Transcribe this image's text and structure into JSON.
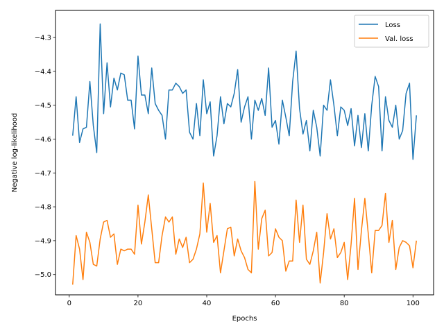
{
  "chart_data": {
    "type": "line",
    "title": "",
    "xlabel": "Epochs",
    "ylabel": "Negative log-likelihood",
    "xlim": [
      -4,
      106
    ],
    "ylim": [
      -5.06,
      -4.22
    ],
    "xticks": [
      0,
      20,
      40,
      60,
      80,
      100
    ],
    "yticks": [
      -5.0,
      -4.9,
      -4.8,
      -4.7,
      -4.6,
      -4.5,
      -4.4,
      -4.3
    ],
    "ytick_labels": [
      "−5.0",
      "−4.9",
      "−4.8",
      "−4.7",
      "−4.6",
      "−4.5",
      "−4.4",
      "−4.3"
    ],
    "grid": false,
    "legend_position": "top-right",
    "x_start": 1,
    "series": [
      {
        "name": "Loss",
        "color": "#1f77b4",
        "values": [
          -4.59,
          -4.475,
          -4.61,
          -4.57,
          -4.565,
          -4.43,
          -4.56,
          -4.64,
          -4.26,
          -4.525,
          -4.375,
          -4.505,
          -4.42,
          -4.455,
          -4.405,
          -4.41,
          -4.485,
          -4.485,
          -4.57,
          -4.355,
          -4.47,
          -4.47,
          -4.525,
          -4.39,
          -4.495,
          -4.515,
          -4.53,
          -4.6,
          -4.455,
          -4.455,
          -4.435,
          -4.445,
          -4.465,
          -4.455,
          -4.58,
          -4.6,
          -4.495,
          -4.59,
          -4.425,
          -4.525,
          -4.49,
          -4.65,
          -4.59,
          -4.475,
          -4.555,
          -4.495,
          -4.505,
          -4.465,
          -4.395,
          -4.55,
          -4.505,
          -4.475,
          -4.6,
          -4.485,
          -4.515,
          -4.48,
          -4.53,
          -4.39,
          -4.565,
          -4.545,
          -4.615,
          -4.485,
          -4.535,
          -4.59,
          -4.43,
          -4.34,
          -4.51,
          -4.585,
          -4.545,
          -4.635,
          -4.515,
          -4.565,
          -4.65,
          -4.5,
          -4.515,
          -4.425,
          -4.5,
          -4.59,
          -4.505,
          -4.515,
          -4.56,
          -4.51,
          -4.62,
          -4.53,
          -4.625,
          -4.525,
          -4.635,
          -4.5,
          -4.415,
          -4.445,
          -4.635,
          -4.475,
          -4.545,
          -4.565,
          -4.5,
          -4.6,
          -4.575,
          -4.465,
          -4.435,
          -4.66,
          -4.53
        ]
      },
      {
        "name": "Val. loss",
        "color": "#ff7f0e",
        "values": [
          -5.03,
          -4.885,
          -4.925,
          -5.015,
          -4.875,
          -4.905,
          -4.97,
          -4.975,
          -4.895,
          -4.845,
          -4.84,
          -4.89,
          -4.88,
          -4.97,
          -4.925,
          -4.93,
          -4.925,
          -4.925,
          -4.94,
          -4.795,
          -4.91,
          -4.845,
          -4.765,
          -4.865,
          -4.965,
          -4.965,
          -4.885,
          -4.83,
          -4.845,
          -4.83,
          -4.94,
          -4.895,
          -4.92,
          -4.89,
          -4.965,
          -4.955,
          -4.925,
          -4.88,
          -4.73,
          -4.875,
          -4.79,
          -4.905,
          -4.885,
          -4.995,
          -4.93,
          -4.865,
          -4.86,
          -4.945,
          -4.895,
          -4.93,
          -4.95,
          -4.985,
          -4.995,
          -4.725,
          -4.925,
          -4.835,
          -4.81,
          -4.945,
          -4.935,
          -4.865,
          -4.89,
          -4.9,
          -4.99,
          -4.96,
          -4.96,
          -4.78,
          -4.905,
          -4.795,
          -4.955,
          -4.97,
          -4.93,
          -4.875,
          -5.025,
          -4.935,
          -4.82,
          -4.895,
          -4.865,
          -4.95,
          -4.935,
          -4.905,
          -5.015,
          -4.91,
          -4.775,
          -4.985,
          -4.87,
          -4.775,
          -4.88,
          -4.995,
          -4.87,
          -4.87,
          -4.855,
          -4.76,
          -4.905,
          -4.84,
          -4.985,
          -4.92,
          -4.9,
          -4.905,
          -4.915,
          -4.98,
          -4.9
        ]
      }
    ]
  }
}
